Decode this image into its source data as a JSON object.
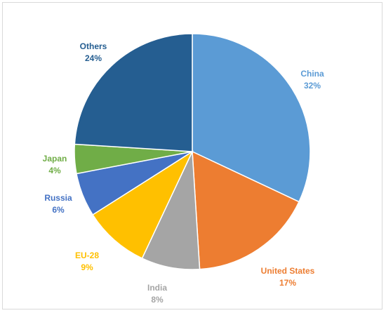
{
  "chart_data": {
    "type": "pie",
    "title": "",
    "slices": [
      {
        "label": "China",
        "value": 32,
        "value_text": "32%",
        "color": "#5b9bd5"
      },
      {
        "label": "United States",
        "value": 17,
        "value_text": "17%",
        "color": "#ed7d31"
      },
      {
        "label": "India",
        "value": 8,
        "value_text": "8%",
        "color": "#a5a5a5"
      },
      {
        "label": "EU-28",
        "value": 9,
        "value_text": "9%",
        "color": "#ffc000"
      },
      {
        "label": "Russia",
        "value": 6,
        "value_text": "6%",
        "color": "#4472c4"
      },
      {
        "label": "Japan",
        "value": 4,
        "value_text": "4%",
        "color": "#70ad47"
      },
      {
        "label": "Others",
        "value": 24,
        "value_text": "24%",
        "color": "#255e91"
      }
    ],
    "start_angle_deg": 0,
    "direction": "clockwise",
    "legend": "none",
    "data_labels": "outside"
  }
}
